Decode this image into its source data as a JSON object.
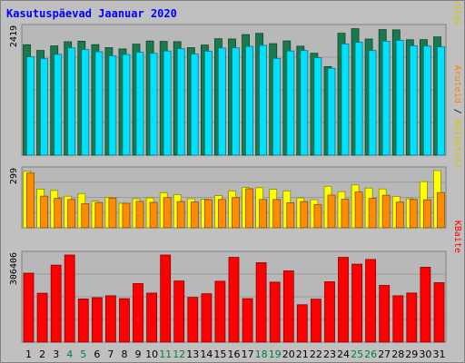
{
  "chart_data": {
    "type": "bar",
    "title": "Kasutuspäevad Jaanuar 2020",
    "categories": [
      "1",
      "2",
      "3",
      "4",
      "5",
      "6",
      "7",
      "8",
      "9",
      "10",
      "11",
      "12",
      "13",
      "14",
      "15",
      "16",
      "17",
      "18",
      "19",
      "20",
      "21",
      "22",
      "23",
      "24",
      "25",
      "26",
      "27",
      "28",
      "29",
      "30",
      "31"
    ],
    "weekend_days": [
      "4",
      "5",
      "11",
      "12",
      "18",
      "19",
      "25",
      "26"
    ],
    "panels": [
      {
        "id": "top",
        "ymax_label": "2419",
        "ymax": 2419,
        "right_label": [
          {
            "text": "Pöördumisi",
            "color": "#006666"
          },
          {
            "text": " / ",
            "color": "#000000"
          },
          {
            "text": "Faile",
            "color": "#0000ff"
          },
          {
            "text": " / ",
            "color": "#000000"
          },
          {
            "text": "Lehekülgi",
            "color": "#cccc00"
          }
        ],
        "series": [
          {
            "name": "Pöördumisi",
            "color": "#197a4e",
            "values": [
              2103,
              1994,
              2081,
              2160,
              2171,
              2105,
              2047,
              2023,
              2113,
              2174,
              2167,
              2162,
              2047,
              2097,
              2217,
              2214,
              2297,
              2318,
              2124,
              2175,
              2076,
              1941,
              1686,
              2323,
              2409,
              2212,
              2391,
              2386,
              2198,
              2200,
              2252
            ]
          },
          {
            "name": "Faile",
            "color": "#00e0ff",
            "values": [
              1873,
              1837,
              1919,
              2043,
              2010,
              1970,
              1889,
              1918,
              1960,
              1938,
              1984,
              2027,
              1925,
              1978,
              2041,
              2044,
              2072,
              2090,
              1840,
              1984,
              1993,
              1855,
              1656,
              2116,
              2150,
              1993,
              2168,
              2185,
              2084,
              2079,
              2062
            ]
          },
          {
            "name": "Lehekülgi",
            "color": "#ffff00",
            "values": []
          }
        ]
      },
      {
        "id": "mid",
        "ymax_label": "299",
        "ymax": 299,
        "right_label": [
          {
            "text": "Aruteid",
            "color": "#ff8000"
          },
          {
            "text": " / ",
            "color": "#000000"
          },
          {
            "text": "Külastusi",
            "color": "#cccc00"
          }
        ],
        "series": [
          {
            "name": "Külastusi",
            "color": "#ffff00",
            "values": [
              295,
              202,
              195,
              165,
              179,
              139,
              159,
              128,
              152,
              156,
              183,
              173,
              152,
              149,
              168,
              193,
              211,
              210,
              201,
              193,
              156,
              147,
              217,
              189,
              224,
              208,
              203,
              164,
              152,
              241,
              299
            ]
          },
          {
            "name": "Aruteid",
            "color": "#ff8c00",
            "values": [
              286,
              165,
              154,
              148,
              126,
              132,
              155,
              128,
              138,
              133,
              158,
              137,
              135,
              147,
              148,
              158,
              204,
              148,
              148,
              131,
              137,
              121,
              171,
              149,
              187,
              154,
              170,
              134,
              148,
              146,
              184
            ]
          }
        ]
      },
      {
        "id": "bot",
        "ymax_label": "306406",
        "ymax": 306406,
        "right_label": [
          {
            "text": "KBaite",
            "color": "#ff0000"
          }
        ],
        "series": [
          {
            "name": "KBaite",
            "color": "#ff0000",
            "values": [
              242510,
              172150,
              270720,
              306406,
              151970,
              156380,
              163190,
              152780,
              205760,
              172450,
              306406,
              215210,
              157260,
              170140,
              214320,
              298240,
              152780,
              279230,
              210840,
              250410,
              131580,
              151040,
              212400,
              298240,
              274230,
              290840,
              199390,
              163190,
              172790,
              263420,
              209160
            ]
          }
        ]
      }
    ]
  }
}
